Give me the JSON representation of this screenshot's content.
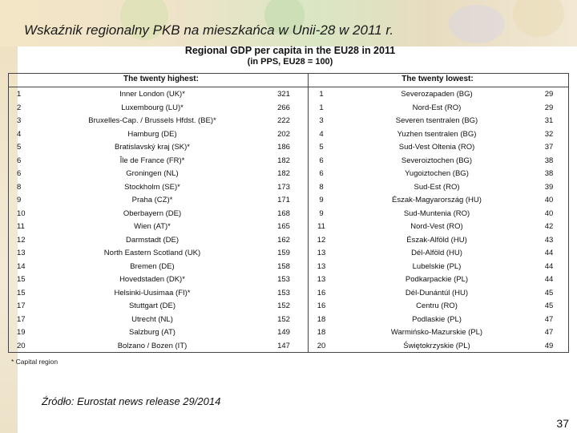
{
  "slide": {
    "title": "Wskaźnik regionalny PKB na mieszkańca w Unii-28 w 2011 r.",
    "source": "Źródło: Eurostat news release 29/2014",
    "page_number": "37"
  },
  "table": {
    "title": "Regional GDP per capita in the EU28 in 2011",
    "subtitle": "(in PPS, EU28 = 100)",
    "header_highest": "The twenty highest:",
    "header_lowest": "The twenty lowest:",
    "footnote": "* Capital region",
    "highest": [
      {
        "rank": "1",
        "region": "Inner London (UK)*",
        "value": "321"
      },
      {
        "rank": "2",
        "region": "Luxembourg (LU)*",
        "value": "266"
      },
      {
        "rank": "3",
        "region": "Bruxelles-Cap. / Brussels Hfdst. (BE)*",
        "value": "222"
      },
      {
        "rank": "4",
        "region": "Hamburg (DE)",
        "value": "202"
      },
      {
        "rank": "5",
        "region": "Bratislavský kraj (SK)*",
        "value": "186"
      },
      {
        "rank": "6",
        "region": "Île de France (FR)*",
        "value": "182"
      },
      {
        "rank": "6",
        "region": "Groningen (NL)",
        "value": "182"
      },
      {
        "rank": "8",
        "region": "Stockholm (SE)*",
        "value": "173"
      },
      {
        "rank": "9",
        "region": "Praha (CZ)*",
        "value": "171"
      },
      {
        "rank": "10",
        "region": "Oberbayern (DE)",
        "value": "168"
      },
      {
        "rank": "11",
        "region": "Wien (AT)*",
        "value": "165"
      },
      {
        "rank": "12",
        "region": "Darmstadt (DE)",
        "value": "162"
      },
      {
        "rank": "13",
        "region": "North Eastern Scotland (UK)",
        "value": "159"
      },
      {
        "rank": "14",
        "region": "Bremen (DE)",
        "value": "158"
      },
      {
        "rank": "15",
        "region": "Hovedstaden (DK)*",
        "value": "153"
      },
      {
        "rank": "15",
        "region": "Helsinki-Uusimaa (FI)*",
        "value": "153"
      },
      {
        "rank": "17",
        "region": "Stuttgart (DE)",
        "value": "152"
      },
      {
        "rank": "17",
        "region": "Utrecht (NL)",
        "value": "152"
      },
      {
        "rank": "19",
        "region": "Salzburg (AT)",
        "value": "149"
      },
      {
        "rank": "20",
        "region": "Bolzano / Bozen (IT)",
        "value": "147"
      }
    ],
    "lowest": [
      {
        "rank": "1",
        "region": "Severozapaden (BG)",
        "value": "29"
      },
      {
        "rank": "1",
        "region": "Nord-Est (RO)",
        "value": "29"
      },
      {
        "rank": "3",
        "region": "Severen tsentralen (BG)",
        "value": "31"
      },
      {
        "rank": "4",
        "region": "Yuzhen tsentralen (BG)",
        "value": "32"
      },
      {
        "rank": "5",
        "region": "Sud-Vest Oltenia (RO)",
        "value": "37"
      },
      {
        "rank": "6",
        "region": "Severoiztochen (BG)",
        "value": "38"
      },
      {
        "rank": "6",
        "region": "Yugoiztochen (BG)",
        "value": "38"
      },
      {
        "rank": "8",
        "region": "Sud-Est (RO)",
        "value": "39"
      },
      {
        "rank": "9",
        "region": "Észak-Magyarország (HU)",
        "value": "40"
      },
      {
        "rank": "9",
        "region": "Sud-Muntenia (RO)",
        "value": "40"
      },
      {
        "rank": "11",
        "region": "Nord-Vest (RO)",
        "value": "42"
      },
      {
        "rank": "12",
        "region": "Észak-Alföld (HU)",
        "value": "43"
      },
      {
        "rank": "13",
        "region": "Dél-Alföld (HU)",
        "value": "44"
      },
      {
        "rank": "13",
        "region": "Lubelskie (PL)",
        "value": "44"
      },
      {
        "rank": "13",
        "region": "Podkarpackie (PL)",
        "value": "44"
      },
      {
        "rank": "16",
        "region": "Dél-Dunántúl (HU)",
        "value": "45"
      },
      {
        "rank": "16",
        "region": "Centru (RO)",
        "value": "45"
      },
      {
        "rank": "18",
        "region": "Podlaskie (PL)",
        "value": "47"
      },
      {
        "rank": "18",
        "region": "Warmińsko-Mazurskie (PL)",
        "value": "47"
      },
      {
        "rank": "20",
        "region": "Świętokrzyskie (PL)",
        "value": "49"
      }
    ]
  }
}
